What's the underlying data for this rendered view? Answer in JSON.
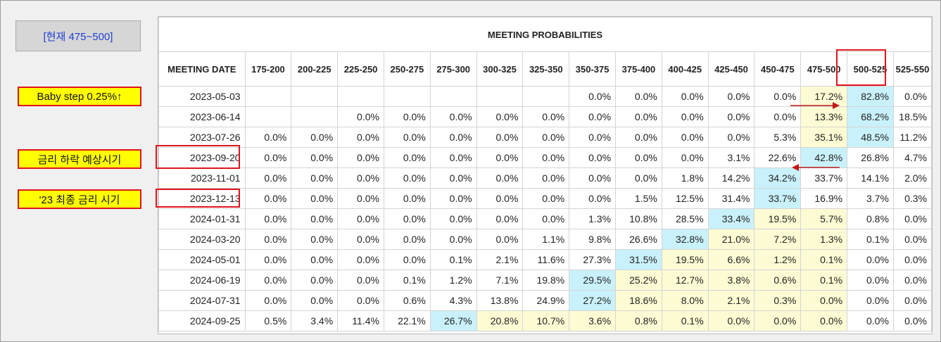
{
  "sidebar": {
    "current_button": "[현재 475~500]",
    "notes": [
      {
        "label": "Baby step 0.25%↑"
      },
      {
        "label": "금리 하락 예상시기"
      },
      {
        "label": "'23 최종 금리 시기"
      }
    ]
  },
  "table": {
    "title": "MEETING PROBABILITIES",
    "date_header": "MEETING DATE",
    "columns": [
      "175-200",
      "200-225",
      "225-250",
      "250-275",
      "275-300",
      "300-325",
      "325-350",
      "350-375",
      "375-400",
      "400-425",
      "425-450",
      "450-475",
      "475-500",
      "500-525",
      "525-550"
    ],
    "rows": [
      {
        "date": "2023-05-03",
        "values": [
          "",
          "",
          "",
          "",
          "",
          "",
          "",
          "0.0%",
          "0.0%",
          "0.0%",
          "0.0%",
          "0.0%",
          "17.2%",
          "82.8%",
          "0.0%"
        ]
      },
      {
        "date": "2023-06-14",
        "values": [
          "",
          "",
          "0.0%",
          "0.0%",
          "0.0%",
          "0.0%",
          "0.0%",
          "0.0%",
          "0.0%",
          "0.0%",
          "0.0%",
          "0.0%",
          "13.3%",
          "68.2%",
          "18.5%"
        ]
      },
      {
        "date": "2023-07-26",
        "values": [
          "0.0%",
          "0.0%",
          "0.0%",
          "0.0%",
          "0.0%",
          "0.0%",
          "0.0%",
          "0.0%",
          "0.0%",
          "0.0%",
          "0.0%",
          "5.3%",
          "35.1%",
          "48.5%",
          "11.2%"
        ]
      },
      {
        "date": "2023-09-20",
        "values": [
          "0.0%",
          "0.0%",
          "0.0%",
          "0.0%",
          "0.0%",
          "0.0%",
          "0.0%",
          "0.0%",
          "0.0%",
          "0.0%",
          "3.1%",
          "22.6%",
          "42.8%",
          "26.8%",
          "4.7%"
        ]
      },
      {
        "date": "2023-11-01",
        "values": [
          "0.0%",
          "0.0%",
          "0.0%",
          "0.0%",
          "0.0%",
          "0.0%",
          "0.0%",
          "0.0%",
          "0.0%",
          "1.8%",
          "14.2%",
          "34.2%",
          "33.7%",
          "14.1%",
          "2.0%"
        ]
      },
      {
        "date": "2023-12-13",
        "values": [
          "0.0%",
          "0.0%",
          "0.0%",
          "0.0%",
          "0.0%",
          "0.0%",
          "0.0%",
          "0.0%",
          "1.5%",
          "12.5%",
          "31.4%",
          "33.7%",
          "16.9%",
          "3.7%",
          "0.3%"
        ]
      },
      {
        "date": "2024-01-31",
        "values": [
          "0.0%",
          "0.0%",
          "0.0%",
          "0.0%",
          "0.0%",
          "0.0%",
          "0.0%",
          "1.3%",
          "10.8%",
          "28.5%",
          "33.4%",
          "19.5%",
          "5.7%",
          "0.8%",
          "0.0%"
        ]
      },
      {
        "date": "2024-03-20",
        "values": [
          "0.0%",
          "0.0%",
          "0.0%",
          "0.0%",
          "0.0%",
          "0.0%",
          "1.1%",
          "9.8%",
          "26.6%",
          "32.8%",
          "21.0%",
          "7.2%",
          "1.3%",
          "0.1%",
          "0.0%"
        ]
      },
      {
        "date": "2024-05-01",
        "values": [
          "0.0%",
          "0.0%",
          "0.0%",
          "0.0%",
          "0.1%",
          "2.1%",
          "11.6%",
          "27.3%",
          "31.5%",
          "19.5%",
          "6.6%",
          "1.2%",
          "0.1%",
          "0.0%",
          "0.0%"
        ]
      },
      {
        "date": "2024-06-19",
        "values": [
          "0.0%",
          "0.0%",
          "0.0%",
          "0.1%",
          "1.2%",
          "7.1%",
          "19.8%",
          "29.5%",
          "25.2%",
          "12.7%",
          "3.8%",
          "0.6%",
          "0.1%",
          "0.0%",
          "0.0%"
        ]
      },
      {
        "date": "2024-07-31",
        "values": [
          "0.0%",
          "0.0%",
          "0.0%",
          "0.6%",
          "4.3%",
          "13.8%",
          "24.9%",
          "27.2%",
          "18.6%",
          "8.0%",
          "2.1%",
          "0.3%",
          "0.0%",
          "0.0%",
          "0.0%"
        ]
      },
      {
        "date": "2024-09-25",
        "values": [
          "0.5%",
          "3.4%",
          "11.4%",
          "22.1%",
          "26.7%",
          "20.8%",
          "10.7%",
          "3.6%",
          "0.8%",
          "0.1%",
          "0.0%",
          "0.0%",
          "0.0%",
          "0.0%",
          "0.0%"
        ]
      }
    ]
  },
  "colors": {
    "highlight_max": "#c9f1fb",
    "highlight_near": "#fdfbd3",
    "annotation_red": "#e0141c",
    "note_yellow": "#ffff00",
    "current_text_blue": "#1f3fd1"
  }
}
